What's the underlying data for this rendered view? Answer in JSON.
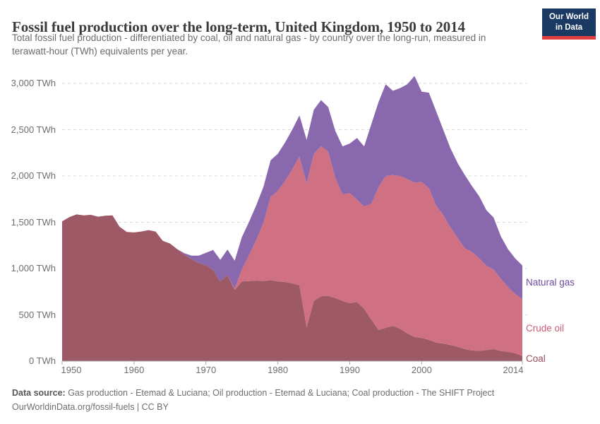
{
  "header": {
    "title": "Fossil fuel production over the long-term, United Kingdom, 1950 to 2014",
    "subtitle": "Total fossil fuel production - differentiated by coal, oil and natural gas - by country over the long-run, measured in terawatt-hour (TWh) equivalents per year.",
    "logo": {
      "line1": "Our World",
      "line2": "in Data",
      "bg": "#1a3a63",
      "stripe": "#e03e3f"
    }
  },
  "footer": {
    "source_label": "Data source:",
    "source_text": " Gas production - Etemad & Luciana; Oil production - Etemad & Luciana; Coal production - The SHIFT Project",
    "link": "OurWorldinData.org/fossil-fuels",
    "license": " | CC BY"
  },
  "chart_data": {
    "type": "area",
    "stacked": true,
    "title": "Fossil fuel production over the long-term, United Kingdom, 1950 to 2014",
    "xlabel": "",
    "ylabel": "TWh",
    "ylim": [
      0,
      3000
    ],
    "grid": "horizontal-dashed",
    "legend_position": "right",
    "x": [
      1950,
      1951,
      1952,
      1953,
      1954,
      1955,
      1956,
      1957,
      1958,
      1959,
      1960,
      1961,
      1962,
      1963,
      1964,
      1965,
      1966,
      1967,
      1968,
      1969,
      1970,
      1971,
      1972,
      1973,
      1974,
      1975,
      1976,
      1977,
      1978,
      1979,
      1980,
      1981,
      1982,
      1983,
      1984,
      1985,
      1986,
      1987,
      1988,
      1989,
      1990,
      1991,
      1992,
      1993,
      1994,
      1995,
      1996,
      1997,
      1998,
      1999,
      2000,
      2001,
      2002,
      2003,
      2004,
      2005,
      2006,
      2007,
      2008,
      2009,
      2010,
      2011,
      2012,
      2013,
      2014
    ],
    "series": [
      {
        "name": "Coal",
        "color": "#9d5a66",
        "label_color": "#9e4a5a",
        "values": [
          1510,
          1555,
          1585,
          1575,
          1580,
          1560,
          1570,
          1575,
          1450,
          1395,
          1390,
          1400,
          1415,
          1400,
          1300,
          1270,
          1210,
          1150,
          1100,
          1060,
          1035,
          985,
          860,
          930,
          770,
          860,
          865,
          870,
          865,
          875,
          860,
          855,
          840,
          820,
          365,
          650,
          700,
          705,
          680,
          650,
          625,
          640,
          565,
          450,
          335,
          360,
          380,
          350,
          300,
          260,
          250,
          230,
          200,
          190,
          175,
          155,
          130,
          115,
          110,
          120,
          130,
          110,
          100,
          85,
          55
        ]
      },
      {
        "name": "Crude oil",
        "color": "#cf7183",
        "label_color": "#c85b74",
        "values": [
          0,
          0,
          0,
          0,
          0,
          0,
          0,
          0,
          0,
          0,
          0,
          0,
          0,
          0,
          0,
          0,
          0,
          0,
          0,
          0,
          0,
          0,
          0,
          0,
          10,
          130,
          280,
          440,
          630,
          900,
          980,
          1090,
          1230,
          1390,
          1555,
          1590,
          1620,
          1560,
          1295,
          1150,
          1190,
          1105,
          1105,
          1250,
          1545,
          1640,
          1630,
          1650,
          1665,
          1670,
          1685,
          1640,
          1480,
          1390,
          1270,
          1175,
          1090,
          1065,
          1000,
          910,
          860,
          780,
          700,
          640,
          615
        ]
      },
      {
        "name": "Natural gas",
        "color": "#8a68ad",
        "label_color": "#6d4b9e",
        "values": [
          0,
          0,
          0,
          0,
          0,
          0,
          0,
          0,
          0,
          0,
          0,
          0,
          0,
          0,
          0,
          0,
          0,
          15,
          40,
          80,
          135,
          215,
          235,
          275,
          305,
          350,
          360,
          375,
          390,
          395,
          400,
          415,
          430,
          445,
          470,
          475,
          500,
          480,
          510,
          520,
          535,
          665,
          650,
          860,
          920,
          990,
          910,
          950,
          1025,
          1150,
          975,
          1030,
          1020,
          920,
          855,
          810,
          790,
          710,
          670,
          600,
          560,
          460,
          410,
          385,
          363
        ]
      }
    ],
    "yticks": [
      {
        "value": 0,
        "label": "0 TWh"
      },
      {
        "value": 500,
        "label": "500 TWh"
      },
      {
        "value": 1000,
        "label": "1,000 TWh"
      },
      {
        "value": 1500,
        "label": "1,500 TWh"
      },
      {
        "value": 2000,
        "label": "2,000 TWh"
      },
      {
        "value": 2500,
        "label": "2,500 TWh"
      },
      {
        "value": 3000,
        "label": "3,000 TWh"
      }
    ],
    "xticks": [
      {
        "year": 1950,
        "label": "1950",
        "dx": 13
      },
      {
        "year": 1960,
        "label": "1960",
        "dx": 0
      },
      {
        "year": 1970,
        "label": "1970",
        "dx": 0
      },
      {
        "year": 1980,
        "label": "1980",
        "dx": 0
      },
      {
        "year": 1990,
        "label": "1990",
        "dx": 0
      },
      {
        "year": 2000,
        "label": "2000",
        "dx": 0
      },
      {
        "year": 2014,
        "label": "2014",
        "dx": -13
      }
    ]
  }
}
